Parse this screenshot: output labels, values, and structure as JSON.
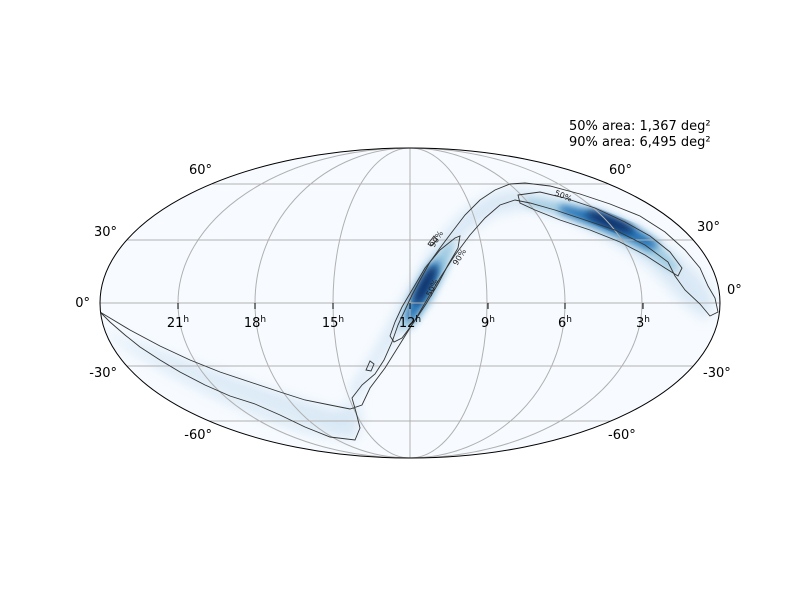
{
  "annotation": {
    "area_50": "50% area: 1,367 deg²",
    "area_90": "90% area: 6,495 deg²"
  },
  "projection": "mollweide",
  "ra_ticks": [
    {
      "value": "21",
      "unit": "h"
    },
    {
      "value": "18",
      "unit": "h"
    },
    {
      "value": "15",
      "unit": "h"
    },
    {
      "value": "12",
      "unit": "h"
    },
    {
      "value": "9",
      "unit": "h"
    },
    {
      "value": "6",
      "unit": "h"
    },
    {
      "value": "3",
      "unit": "h"
    }
  ],
  "dec_ticks": {
    "left": {
      "p60": "60°",
      "p30": "30°",
      "zero": "0°",
      "m30": "-30°",
      "m60": "-60°"
    },
    "right": {
      "p60": "60°",
      "p30": "30°",
      "zero": "0°",
      "m30": "-30°",
      "m60": "-60°"
    }
  },
  "contour_labels": {
    "c50": "50%",
    "c90": "90%"
  },
  "colors": {
    "background": "#f7fbff",
    "low": "#deebf7",
    "mid": "#6baed6",
    "high": "#2171b5",
    "peak": "#08306b",
    "grid": "#b0b0b0",
    "contour": "#333333"
  }
}
